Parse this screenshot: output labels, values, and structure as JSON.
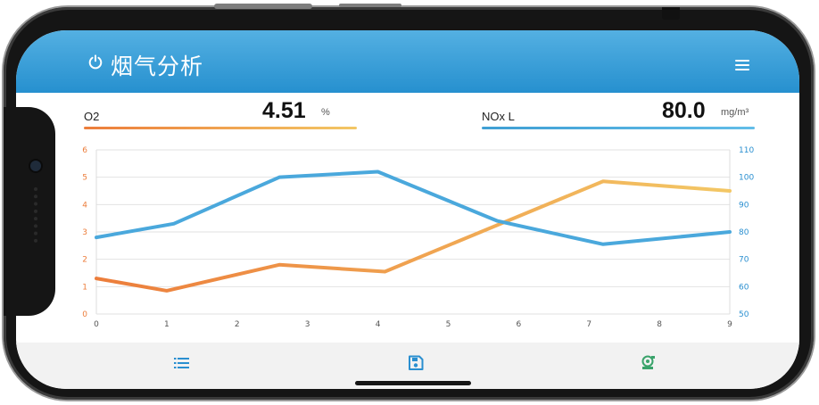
{
  "app": {
    "title": "烟气分析",
    "power_icon": "power-icon",
    "menu_icon": "menu-icon",
    "header_color": "#2b93d1"
  },
  "readings": [
    {
      "label": "O2",
      "value": "4.51",
      "unit": "%",
      "color": "#f0a050"
    },
    {
      "label": "NOx L",
      "value": "80.0",
      "unit": "mg/m³",
      "color": "#4aa8dc"
    }
  ],
  "chart_data": {
    "type": "line",
    "x": [
      0,
      1,
      2,
      3,
      4,
      5,
      6,
      7,
      8,
      9
    ],
    "x_ticks": [
      "0",
      "1",
      "2",
      "3",
      "4",
      "5",
      "6",
      "7",
      "8",
      "9"
    ],
    "left_axis": {
      "ticks": [
        "0",
        "1",
        "2",
        "3",
        "4",
        "5",
        "6"
      ],
      "ylim": [
        0,
        6
      ],
      "color": "#ec7d3b"
    },
    "right_axis": {
      "ticks": [
        "50",
        "60",
        "70",
        "80",
        "90",
        "100",
        "110"
      ],
      "ylim": [
        50,
        110
      ],
      "color": "#2a8fd0"
    },
    "series": [
      {
        "axis": "left",
        "color_start": "#ec7d3b",
        "color_end": "#f3c765",
        "points": [
          [
            0,
            1.3
          ],
          [
            1,
            0.85
          ],
          [
            2.6,
            1.8
          ],
          [
            4.1,
            1.55
          ],
          [
            7.2,
            4.85
          ],
          [
            9.4,
            4.5
          ]
        ]
      },
      {
        "axis": "right",
        "color": "#4aa8dc",
        "points": [
          [
            0,
            78
          ],
          [
            1.1,
            83
          ],
          [
            2.6,
            100
          ],
          [
            4,
            102
          ],
          [
            5.7,
            84
          ],
          [
            7.2,
            75.5
          ],
          [
            9.4,
            80
          ]
        ]
      }
    ],
    "grid": "horizontal"
  },
  "footer": {
    "icons": [
      "list-icon",
      "save-icon",
      "device-settings-icon"
    ]
  }
}
